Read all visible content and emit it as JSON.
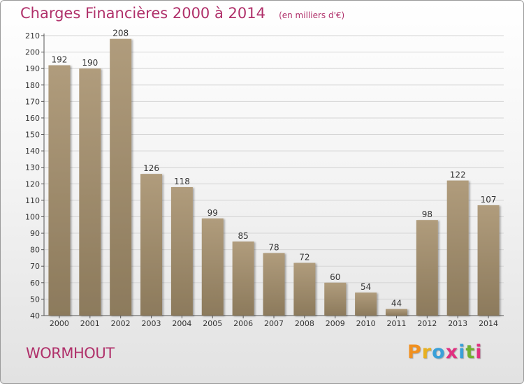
{
  "header": {
    "title": "Charges Financières 2000 à 2014",
    "subtitle": "(en milliers d'€)"
  },
  "footer": {
    "commune": "WORMHOUT",
    "logo_letters": [
      "P",
      "r",
      "o",
      "x",
      "i",
      "t",
      "i"
    ],
    "logo_colors": [
      "#f09020",
      "#e8b020",
      "#3aa0d8",
      "#e03080",
      "#3aa0d8",
      "#70b030",
      "#e03080"
    ]
  },
  "chart_data": {
    "type": "bar",
    "categories": [
      "2000",
      "2001",
      "2002",
      "2003",
      "2004",
      "2005",
      "2006",
      "2007",
      "2008",
      "2009",
      "2010",
      "2011",
      "2012",
      "2013",
      "2014"
    ],
    "values": [
      192,
      190,
      208,
      126,
      118,
      99,
      85,
      78,
      72,
      60,
      54,
      44,
      98,
      122,
      107
    ],
    "yticks": [
      40,
      50,
      60,
      70,
      80,
      90,
      100,
      110,
      120,
      130,
      140,
      150,
      160,
      170,
      180,
      190,
      200,
      210
    ],
    "ylim": [
      40,
      210
    ],
    "grid": true,
    "bar_color": "#8c7a5c",
    "bar_color_light": "#b09c7c"
  }
}
